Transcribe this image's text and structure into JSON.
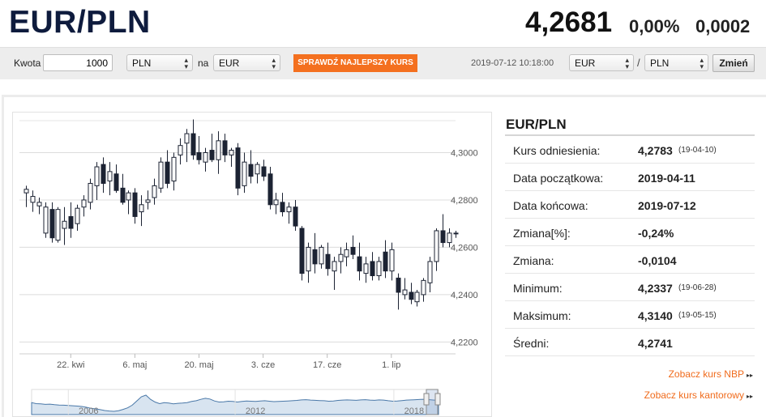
{
  "header": {
    "pair": "EUR/PLN",
    "rate": "4,2681",
    "change_pct": "0,00%",
    "change_abs": "0,0002"
  },
  "converter": {
    "amount_label": "Kwota",
    "amount_value": "1000",
    "from_currency": "PLN",
    "to_label": "na",
    "to_currency": "EUR",
    "button_label": "SPRAWDŹ NAJLEPSZY KURS"
  },
  "pair_selector": {
    "timestamp": "2019-07-12 10:18:00",
    "base": "EUR",
    "separator": "/",
    "quote": "PLN",
    "button_label": "Zmień"
  },
  "panel": {
    "title": "EUR/PLN",
    "rows": [
      {
        "label": "Kurs odniesienia:",
        "value": "4,2783",
        "date": "(19-04-10)"
      },
      {
        "label": "Data początkowa:",
        "value": "2019-04-11",
        "date": ""
      },
      {
        "label": "Data końcowa:",
        "value": "2019-07-12",
        "date": ""
      },
      {
        "label": "Zmiana[%]:",
        "value": "-0,24%",
        "date": ""
      },
      {
        "label": "Zmiana:",
        "value": "-0,0104",
        "date": ""
      },
      {
        "label": "Minimum:",
        "value": "4,2337",
        "date": "(19-06-28)"
      },
      {
        "label": "Maksimum:",
        "value": "4,3140",
        "date": "(19-05-15)"
      },
      {
        "label": "Średni:",
        "value": "4,2741",
        "date": ""
      }
    ],
    "links": [
      {
        "label": "Zobacz kurs NBP",
        "arrow": "▸▸"
      },
      {
        "label": "Zobacz kurs kantorowy",
        "arrow": "▸▸"
      }
    ]
  },
  "colors": {
    "title": "#0e1b3d",
    "accent": "#f4701f",
    "candle": "#1c2333",
    "navigator_line": "#4a78a8"
  },
  "chart_data": {
    "type": "candlestick",
    "ylim": [
      4.215,
      4.3135
    ],
    "yticks": [
      "4,2200",
      "4,2400",
      "4,2600",
      "4,2800",
      "4,3000"
    ],
    "ytick_values": [
      4.22,
      4.24,
      4.26,
      4.28,
      4.3
    ],
    "xticks": [
      "22. kwi",
      "6. maj",
      "20. maj",
      "3. cze",
      "17. cze",
      "1. lip"
    ],
    "xtick_index": [
      7,
      17,
      27,
      37,
      47,
      57
    ],
    "xlim": [
      -1,
      66
    ],
    "candles": [
      {
        "o": 4.283,
        "h": 4.286,
        "l": 4.277,
        "c": 4.2845
      },
      {
        "o": 4.279,
        "h": 4.284,
        "l": 4.275,
        "c": 4.2815
      },
      {
        "o": 4.2775,
        "h": 4.281,
        "l": 4.274,
        "c": 4.279
      },
      {
        "o": 4.266,
        "h": 4.279,
        "l": 4.264,
        "c": 4.277
      },
      {
        "o": 4.276,
        "h": 4.279,
        "l": 4.262,
        "c": 4.264
      },
      {
        "o": 4.263,
        "h": 4.277,
        "l": 4.262,
        "c": 4.276
      },
      {
        "o": 4.268,
        "h": 4.277,
        "l": 4.261,
        "c": 4.271
      },
      {
        "o": 4.273,
        "h": 4.279,
        "l": 4.264,
        "c": 4.268
      },
      {
        "o": 4.27,
        "h": 4.278,
        "l": 4.267,
        "c": 4.2765
      },
      {
        "o": 4.277,
        "h": 4.282,
        "l": 4.273,
        "c": 4.28
      },
      {
        "o": 4.279,
        "h": 4.289,
        "l": 4.276,
        "c": 4.287
      },
      {
        "o": 4.286,
        "h": 4.296,
        "l": 4.28,
        "c": 4.294
      },
      {
        "o": 4.295,
        "h": 4.298,
        "l": 4.283,
        "c": 4.287
      },
      {
        "o": 4.288,
        "h": 4.296,
        "l": 4.282,
        "c": 4.292
      },
      {
        "o": 4.291,
        "h": 4.295,
        "l": 4.283,
        "c": 4.284
      },
      {
        "o": 4.285,
        "h": 4.291,
        "l": 4.278,
        "c": 4.279
      },
      {
        "o": 4.28,
        "h": 4.284,
        "l": 4.274,
        "c": 4.283
      },
      {
        "o": 4.283,
        "h": 4.285,
        "l": 4.27,
        "c": 4.273
      },
      {
        "o": 4.275,
        "h": 4.282,
        "l": 4.269,
        "c": 4.278
      },
      {
        "o": 4.279,
        "h": 4.284,
        "l": 4.276,
        "c": 4.28
      },
      {
        "o": 4.281,
        "h": 4.289,
        "l": 4.278,
        "c": 4.286
      },
      {
        "o": 4.285,
        "h": 4.298,
        "l": 4.283,
        "c": 4.296
      },
      {
        "o": 4.296,
        "h": 4.301,
        "l": 4.285,
        "c": 4.287
      },
      {
        "o": 4.288,
        "h": 4.3,
        "l": 4.284,
        "c": 4.298
      },
      {
        "o": 4.299,
        "h": 4.306,
        "l": 4.295,
        "c": 4.303
      },
      {
        "o": 4.304,
        "h": 4.31,
        "l": 4.296,
        "c": 4.308
      },
      {
        "o": 4.308,
        "h": 4.314,
        "l": 4.297,
        "c": 4.299
      },
      {
        "o": 4.3,
        "h": 4.307,
        "l": 4.295,
        "c": 4.297
      },
      {
        "o": 4.296,
        "h": 4.302,
        "l": 4.292,
        "c": 4.3
      },
      {
        "o": 4.301,
        "h": 4.308,
        "l": 4.296,
        "c": 4.297
      },
      {
        "o": 4.297,
        "h": 4.309,
        "l": 4.291,
        "c": 4.305
      },
      {
        "o": 4.305,
        "h": 4.308,
        "l": 4.296,
        "c": 4.299
      },
      {
        "o": 4.299,
        "h": 4.302,
        "l": 4.294,
        "c": 4.301
      },
      {
        "o": 4.302,
        "h": 4.304,
        "l": 4.282,
        "c": 4.285
      },
      {
        "o": 4.286,
        "h": 4.3,
        "l": 4.283,
        "c": 4.296
      },
      {
        "o": 4.295,
        "h": 4.301,
        "l": 4.287,
        "c": 4.29
      },
      {
        "o": 4.291,
        "h": 4.296,
        "l": 4.287,
        "c": 4.295
      },
      {
        "o": 4.294,
        "h": 4.297,
        "l": 4.288,
        "c": 4.29
      },
      {
        "o": 4.291,
        "h": 4.294,
        "l": 4.276,
        "c": 4.278
      },
      {
        "o": 4.278,
        "h": 4.283,
        "l": 4.274,
        "c": 4.28
      },
      {
        "o": 4.279,
        "h": 4.283,
        "l": 4.273,
        "c": 4.275
      },
      {
        "o": 4.275,
        "h": 4.279,
        "l": 4.27,
        "c": 4.277
      },
      {
        "o": 4.277,
        "h": 4.28,
        "l": 4.267,
        "c": 4.269
      },
      {
        "o": 4.268,
        "h": 4.269,
        "l": 4.246,
        "c": 4.249
      },
      {
        "o": 4.25,
        "h": 4.262,
        "l": 4.245,
        "c": 4.26
      },
      {
        "o": 4.259,
        "h": 4.266,
        "l": 4.249,
        "c": 4.253
      },
      {
        "o": 4.253,
        "h": 4.261,
        "l": 4.251,
        "c": 4.26
      },
      {
        "o": 4.257,
        "h": 4.262,
        "l": 4.248,
        "c": 4.251
      },
      {
        "o": 4.25,
        "h": 4.256,
        "l": 4.242,
        "c": 4.254
      },
      {
        "o": 4.254,
        "h": 4.26,
        "l": 4.249,
        "c": 4.257
      },
      {
        "o": 4.256,
        "h": 4.262,
        "l": 4.252,
        "c": 4.259
      },
      {
        "o": 4.26,
        "h": 4.265,
        "l": 4.255,
        "c": 4.257
      },
      {
        "o": 4.256,
        "h": 4.262,
        "l": 4.246,
        "c": 4.25
      },
      {
        "o": 4.249,
        "h": 4.256,
        "l": 4.245,
        "c": 4.253
      },
      {
        "o": 4.254,
        "h": 4.258,
        "l": 4.246,
        "c": 4.248
      },
      {
        "o": 4.248,
        "h": 4.256,
        "l": 4.246,
        "c": 4.254
      },
      {
        "o": 4.258,
        "h": 4.263,
        "l": 4.247,
        "c": 4.25
      },
      {
        "o": 4.25,
        "h": 4.262,
        "l": 4.246,
        "c": 4.259
      },
      {
        "o": 4.247,
        "h": 4.249,
        "l": 4.2337,
        "c": 4.241
      },
      {
        "o": 4.24,
        "h": 4.247,
        "l": 4.238,
        "c": 4.242
      },
      {
        "o": 4.241,
        "h": 4.245,
        "l": 4.236,
        "c": 4.238
      },
      {
        "o": 4.237,
        "h": 4.242,
        "l": 4.235,
        "c": 4.241
      },
      {
        "o": 4.24,
        "h": 4.247,
        "l": 4.237,
        "c": 4.246
      },
      {
        "o": 4.245,
        "h": 4.256,
        "l": 4.241,
        "c": 4.254
      },
      {
        "o": 4.254,
        "h": 4.268,
        "l": 4.25,
        "c": 4.267
      },
      {
        "o": 4.267,
        "h": 4.274,
        "l": 4.26,
        "c": 4.262
      },
      {
        "o": 4.262,
        "h": 4.268,
        "l": 4.26,
        "c": 4.266
      },
      {
        "o": 4.266,
        "h": 4.267,
        "l": 4.264,
        "c": 4.266
      }
    ],
    "navigator": {
      "xticks": [
        "2006",
        "2012",
        "2018"
      ],
      "values": [
        4.05,
        3.95,
        3.92,
        3.88,
        3.9,
        3.85,
        3.82,
        3.8,
        3.78,
        3.75,
        3.72,
        3.68,
        3.6,
        3.5,
        3.45,
        3.38,
        3.3,
        3.25,
        3.22,
        3.28,
        3.4,
        3.55,
        3.8,
        4.2,
        4.6,
        4.75,
        4.35,
        4.1,
        3.95,
        4.05,
        4.0,
        3.92,
        3.98,
        4.0,
        4.05,
        4.15,
        4.22,
        4.35,
        4.45,
        4.38,
        4.2,
        4.1,
        4.12,
        4.18,
        4.15,
        4.1,
        4.15,
        4.2,
        4.18,
        4.16,
        4.19,
        4.22,
        4.18,
        4.14,
        4.16,
        4.18,
        4.2,
        4.22,
        4.25,
        4.3,
        4.32,
        4.28,
        4.26,
        4.24,
        4.22,
        4.18,
        4.2,
        4.25,
        4.28,
        4.3,
        4.28,
        4.26,
        4.3,
        4.32,
        4.28,
        4.26,
        4.3,
        4.28,
        4.22,
        4.18,
        4.2,
        4.24,
        4.28,
        4.3,
        4.32,
        4.35,
        4.36,
        4.32,
        4.28,
        4.3
      ]
    }
  }
}
